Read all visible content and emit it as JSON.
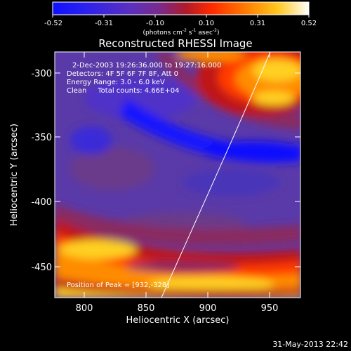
{
  "colorbar": {
    "tick_labels": [
      "-0.52",
      "-0.31",
      "-0.10",
      "0.10",
      "0.31",
      "0.52"
    ],
    "units_main": "(photons cm",
    "units_exp1": "-2",
    "units_mid": " s",
    "units_exp2": "-1",
    "units_end": " asec",
    "units_exp3": "-2",
    "units_close": ")"
  },
  "plot": {
    "title": "Reconstructed RHESSI Image",
    "xlabel": "Heliocentric X (arcsec)",
    "ylabel": "Heliocentric Y (arcsec)",
    "x_ticks": [
      "800",
      "850",
      "900",
      "950"
    ],
    "y_ticks": [
      "-300",
      "-350",
      "-400",
      "-450"
    ],
    "xlim": [
      778,
      968
    ],
    "ylim": [
      -475,
      -285
    ],
    "info_lines": [
      "2-Dec-2003 19:26:36.000 to 19:27:16.000",
      "Detectors: 4F 5F 6F 7F 8F, Att 0",
      "Energy Range: 3.0 - 6.0 keV",
      "Clean     Total counts: 4.66E+04"
    ],
    "peak_label": "Position of Peak = [932,-328]"
  },
  "footer": {
    "timestamp": "31-May-2013 22:42"
  },
  "colors": {
    "background": "#000000",
    "text": "#ffffff",
    "colormap": [
      "#1010ff",
      "#3a2ad8",
      "#5a3aa8",
      "#6a3a8a",
      "#8a2a60",
      "#c01818",
      "#ff3a00",
      "#ff8c00",
      "#ffd020",
      "#fffff0"
    ]
  }
}
